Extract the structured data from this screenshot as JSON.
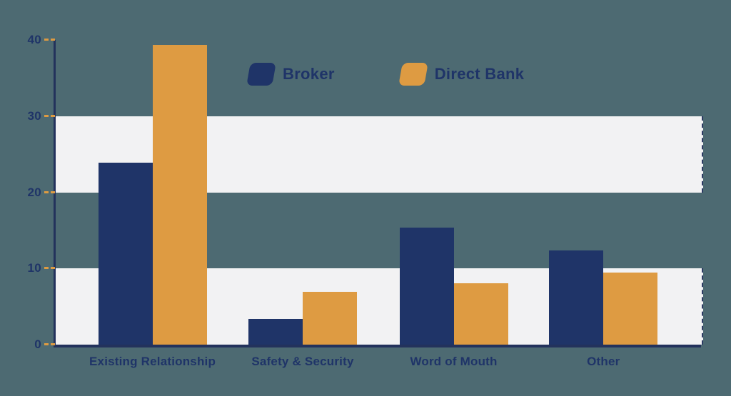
{
  "colors": {
    "background": "#4d6a72",
    "band": "#f2f2f3",
    "axis": "#23325c",
    "tick_dash": "#de9b42",
    "text": "#1f3468",
    "broker": "#1f3468",
    "direct_bank": "#de9b42"
  },
  "legend": {
    "items": [
      {
        "label": "Broker",
        "swatch": "broker-swatch"
      },
      {
        "label": "Direct Bank",
        "swatch": "direct-bank-swatch"
      }
    ]
  },
  "chart_data": {
    "type": "bar",
    "title": "",
    "xlabel": "",
    "ylabel": "",
    "categories": [
      "Existing Relationship",
      "Safety & Security",
      "Word of Mouth",
      "Other"
    ],
    "series": [
      {
        "name": "Broker",
        "color": "#1f3468",
        "values": [
          23.9,
          3.4,
          15.4,
          12.4
        ]
      },
      {
        "name": "Direct Bank",
        "color": "#de9b42",
        "values": [
          39.3,
          6.9,
          8.1,
          9.5
        ]
      }
    ],
    "ylim": [
      0,
      40
    ],
    "yticks": [
      0,
      10,
      20,
      30,
      40
    ],
    "gridbands": [
      [
        0,
        10
      ],
      [
        20,
        30
      ]
    ],
    "grid": "horizontal-bands",
    "legend_position": "top-center"
  }
}
